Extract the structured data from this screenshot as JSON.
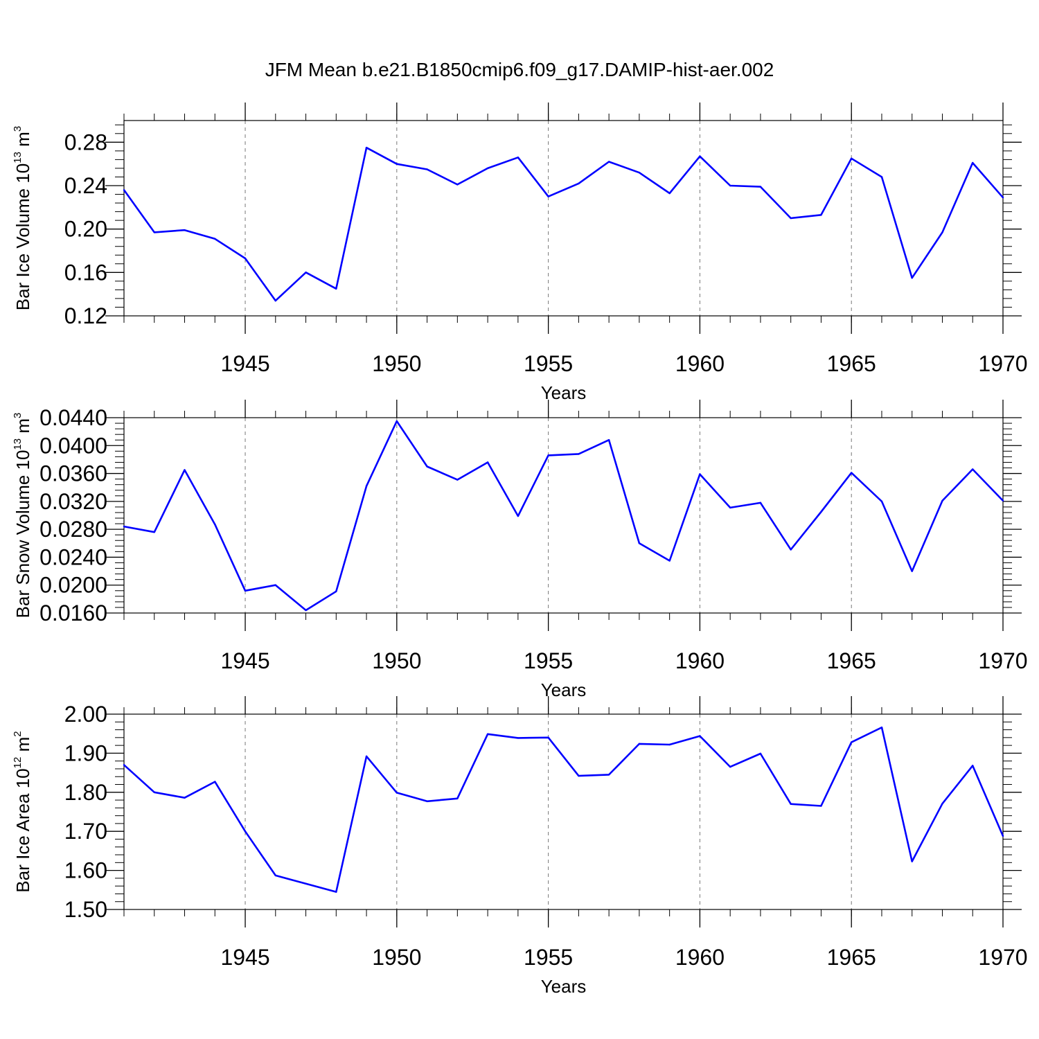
{
  "figure": {
    "title": "JFM Mean b.e21.B1850cmip6.f09_g17.DAMIP-hist-aer.002",
    "series_color": "#0000ff"
  },
  "chart_data": [
    {
      "type": "line",
      "ylabel_prefix": "Bar Ice Volume 10",
      "ylabel_exp": "13",
      "ylabel_unit": " m",
      "ylabel_unit_exp": "3",
      "xlabel": "Years",
      "xlim": [
        1941,
        1970
      ],
      "ylim": [
        0.12,
        0.3
      ],
      "xticks": [
        "1945",
        "1950",
        "1955",
        "1960",
        "1965",
        "1970"
      ],
      "yticks": [
        "0.12",
        "0.16",
        "0.20",
        "0.24",
        "0.28"
      ],
      "x": [
        1941,
        1942,
        1943,
        1944,
        1945,
        1946,
        1947,
        1948,
        1949,
        1950,
        1951,
        1952,
        1953,
        1954,
        1955,
        1956,
        1957,
        1958,
        1959,
        1960,
        1961,
        1962,
        1963,
        1964,
        1965,
        1966,
        1967,
        1968,
        1969,
        1970
      ],
      "values": [
        0.236,
        0.197,
        0.199,
        0.191,
        0.173,
        0.134,
        0.16,
        0.145,
        0.275,
        0.26,
        0.255,
        0.241,
        0.256,
        0.266,
        0.23,
        0.242,
        0.262,
        0.252,
        0.233,
        0.267,
        0.24,
        0.239,
        0.21,
        0.213,
        0.265,
        0.248,
        0.155,
        0.197,
        0.261,
        0.229
      ]
    },
    {
      "type": "line",
      "ylabel_prefix": "Bar Snow Volume 10",
      "ylabel_exp": "13",
      "ylabel_unit": " m",
      "ylabel_unit_exp": "3",
      "xlabel": "Years",
      "xlim": [
        1941,
        1970
      ],
      "ylim": [
        0.016,
        0.044
      ],
      "xticks": [
        "1945",
        "1950",
        "1955",
        "1960",
        "1965",
        "1970"
      ],
      "yticks": [
        "0.0160",
        "0.0200",
        "0.0240",
        "0.0280",
        "0.0320",
        "0.0360",
        "0.0400",
        "0.0440"
      ],
      "x": [
        1941,
        1942,
        1943,
        1944,
        1945,
        1946,
        1947,
        1948,
        1949,
        1950,
        1951,
        1952,
        1953,
        1954,
        1955,
        1956,
        1957,
        1958,
        1959,
        1960,
        1961,
        1962,
        1963,
        1964,
        1965,
        1966,
        1967,
        1968,
        1969,
        1970
      ],
      "values": [
        0.0284,
        0.0276,
        0.0365,
        0.0287,
        0.0192,
        0.02,
        0.0164,
        0.0191,
        0.0342,
        0.0435,
        0.037,
        0.0351,
        0.0376,
        0.0299,
        0.0386,
        0.0388,
        0.0408,
        0.026,
        0.0235,
        0.0359,
        0.0311,
        0.0318,
        0.0251,
        0.0305,
        0.0361,
        0.032,
        0.022,
        0.0321,
        0.0366,
        0.0321
      ]
    },
    {
      "type": "line",
      "ylabel_prefix": "Bar Ice Area 10",
      "ylabel_exp": "12",
      "ylabel_unit": " m",
      "ylabel_unit_exp": "2",
      "xlabel": "Years",
      "xlim": [
        1941,
        1970
      ],
      "ylim": [
        1.5,
        2.0
      ],
      "xticks": [
        "1945",
        "1950",
        "1955",
        "1960",
        "1965",
        "1970"
      ],
      "yticks": [
        "1.50",
        "1.60",
        "1.70",
        "1.80",
        "1.90",
        "2.00"
      ],
      "x": [
        1941,
        1942,
        1943,
        1944,
        1945,
        1946,
        1947,
        1948,
        1949,
        1950,
        1951,
        1952,
        1953,
        1954,
        1955,
        1956,
        1957,
        1958,
        1959,
        1960,
        1961,
        1962,
        1963,
        1964,
        1965,
        1966,
        1967,
        1968,
        1969,
        1970
      ],
      "values": [
        1.87,
        1.8,
        1.786,
        1.827,
        1.7,
        1.587,
        1.566,
        1.545,
        1.892,
        1.799,
        1.777,
        1.784,
        1.949,
        1.939,
        1.94,
        1.842,
        1.845,
        1.924,
        1.922,
        1.944,
        1.865,
        1.899,
        1.77,
        1.765,
        1.928,
        1.966,
        1.623,
        1.771,
        1.868,
        1.688
      ]
    }
  ]
}
